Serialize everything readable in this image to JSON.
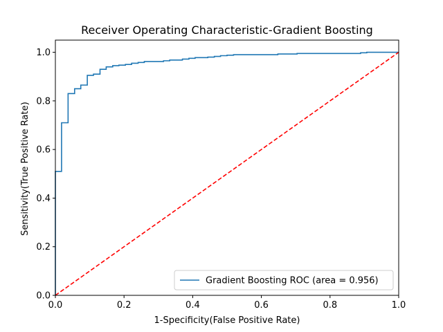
{
  "chart_data": {
    "type": "line",
    "title": "Receiver Operating Characteristic-Gradient Boosting",
    "xlabel": "1-Specificity(False Positive Rate)",
    "ylabel": "Sensitivity(True Positive Rate)",
    "xlim": [
      0.0,
      1.0
    ],
    "ylim": [
      0.0,
      1.05
    ],
    "xticks": [
      "0.0",
      "0.2",
      "0.4",
      "0.6",
      "0.8",
      "1.0"
    ],
    "yticks": [
      "0.0",
      "0.2",
      "0.4",
      "0.6",
      "0.8",
      "1.0"
    ],
    "grid": false,
    "legend_position": "lower-right",
    "series": [
      {
        "name": "Gradient Boosting ROC (area = 0.956)",
        "color": "#1f77b4",
        "style": "solid",
        "x": [
          0.0,
          0.0,
          0.018,
          0.018,
          0.037,
          0.037,
          0.056,
          0.056,
          0.074,
          0.074,
          0.093,
          0.093,
          0.111,
          0.111,
          0.13,
          0.13,
          0.148,
          0.148,
          0.167,
          0.167,
          0.185,
          0.185,
          0.204,
          0.204,
          0.222,
          0.222,
          0.241,
          0.241,
          0.259,
          0.259,
          0.315,
          0.315,
          0.333,
          0.333,
          0.37,
          0.37,
          0.389,
          0.389,
          0.407,
          0.407,
          0.444,
          0.444,
          0.463,
          0.463,
          0.481,
          0.481,
          0.5,
          0.5,
          0.519,
          0.519,
          0.648,
          0.648,
          0.704,
          0.704,
          0.889,
          0.889,
          0.907,
          0.907,
          1.0
        ],
        "y": [
          0.0,
          0.51,
          0.51,
          0.71,
          0.71,
          0.83,
          0.83,
          0.85,
          0.85,
          0.865,
          0.865,
          0.905,
          0.905,
          0.91,
          0.91,
          0.93,
          0.93,
          0.94,
          0.94,
          0.945,
          0.945,
          0.947,
          0.947,
          0.95,
          0.95,
          0.955,
          0.955,
          0.958,
          0.958,
          0.962,
          0.962,
          0.965,
          0.965,
          0.968,
          0.968,
          0.972,
          0.972,
          0.975,
          0.975,
          0.978,
          0.978,
          0.98,
          0.98,
          0.983,
          0.983,
          0.986,
          0.986,
          0.988,
          0.988,
          0.99,
          0.99,
          0.993,
          0.993,
          0.995,
          0.995,
          0.998,
          0.998,
          1.0,
          1.0
        ]
      },
      {
        "color": "#ff0000",
        "style": "dashed",
        "x": [
          0.0,
          1.0
        ],
        "y": [
          0.0,
          1.0
        ]
      }
    ]
  }
}
